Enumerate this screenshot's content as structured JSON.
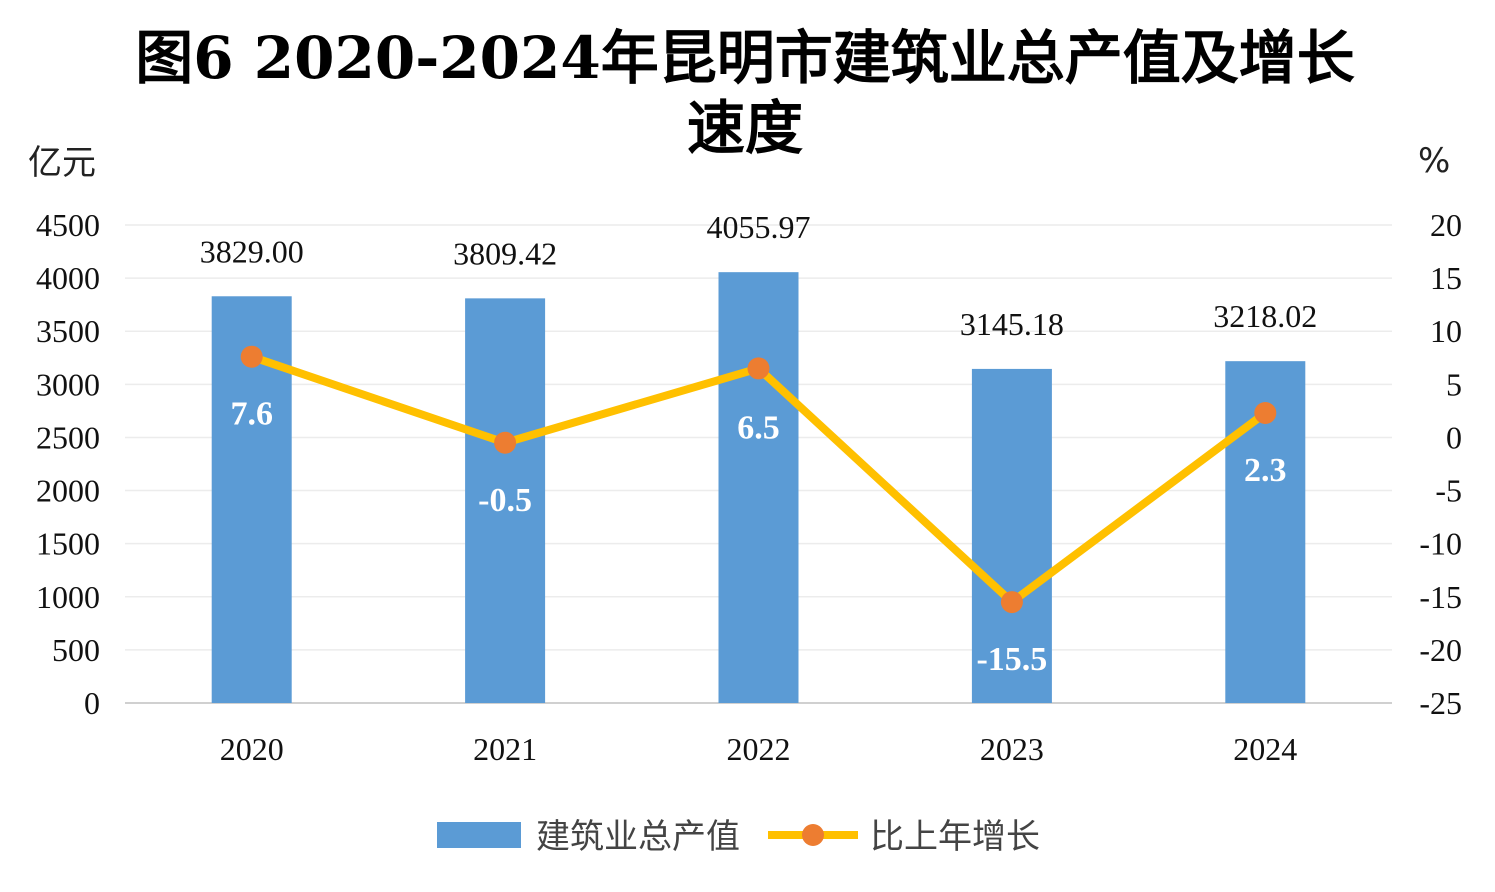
{
  "chart_data": {
    "type": "bar",
    "title_line1": "图6  2020-2024年昆明市建筑业总产值及增长",
    "title_line2": "速度",
    "ylabel_left": "亿元",
    "ylabel_right": "%",
    "categories": [
      "2020",
      "2021",
      "2022",
      "2023",
      "2024"
    ],
    "ylim_left": [
      0,
      4500
    ],
    "yticks_left": [
      0,
      500,
      1000,
      1500,
      2000,
      2500,
      3000,
      3500,
      4000,
      4500
    ],
    "ylim_right": [
      -25,
      20
    ],
    "yticks_right": [
      -25,
      -20,
      -15,
      -10,
      -5,
      0,
      5,
      10,
      15,
      20
    ],
    "series": [
      {
        "name": "建筑业总产值",
        "type": "bar",
        "axis": "left",
        "values": [
          3829.0,
          3809.42,
          4055.97,
          3145.18,
          3218.02
        ],
        "labels": [
          "3829.00",
          "3809.42",
          "4055.97",
          "3145.18",
          "3218.02"
        ],
        "color": "#5b9bd5"
      },
      {
        "name": "比上年增长",
        "type": "line",
        "axis": "right",
        "values": [
          7.6,
          -0.5,
          6.5,
          -15.5,
          2.3
        ],
        "labels": [
          "7.6",
          "-0.5",
          "6.5",
          "-15.5",
          "2.3"
        ],
        "color": "#ffc000",
        "marker_color": "#ed7d31"
      }
    ],
    "grid": true,
    "legend_position": "bottom"
  }
}
